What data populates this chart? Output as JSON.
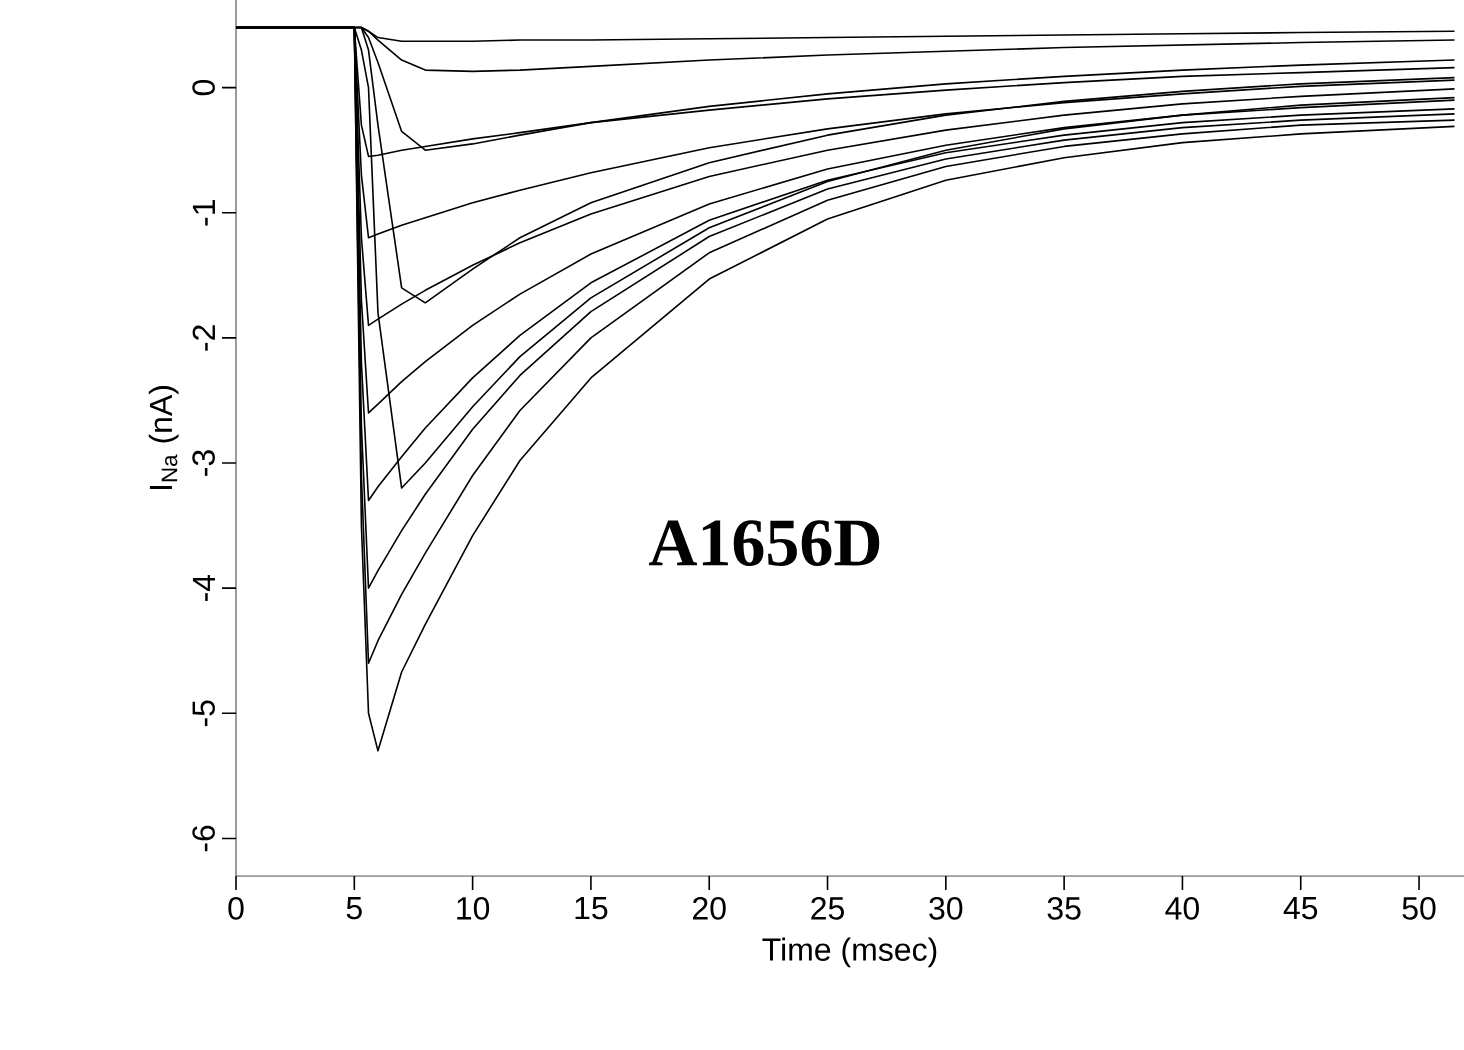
{
  "chart_data": {
    "type": "line",
    "xlabel": "Time (msec)",
    "ylabel": "I$_{Na}$ (nA)",
    "annotations": [
      "A1656D"
    ],
    "xlim": [
      0,
      51.9
    ],
    "ylim": [
      -6.3,
      0.7
    ],
    "xticks": [
      0,
      5,
      10,
      15,
      20,
      25,
      30,
      35,
      40,
      45,
      50
    ],
    "yticks": [
      -6,
      -5,
      -4,
      -3,
      -2,
      -1,
      0
    ],
    "x": [
      0,
      5,
      5.3,
      5.6,
      6,
      7,
      8,
      10,
      12,
      15,
      20,
      25,
      30,
      35,
      40,
      45,
      51.5
    ],
    "series": [
      {
        "color": "#000000",
        "values": [
          0.48,
          0.48,
          0.48,
          0.45,
          0.4,
          0.37,
          0.37,
          0.37,
          0.38,
          0.38,
          0.39,
          0.4,
          0.41,
          0.42,
          0.43,
          0.44,
          0.45
        ]
      },
      {
        "color": "#000000",
        "values": [
          0.48,
          0.48,
          0.48,
          0.45,
          0.38,
          0.22,
          0.14,
          0.13,
          0.14,
          0.17,
          0.22,
          0.26,
          0.29,
          0.32,
          0.34,
          0.36,
          0.38
        ]
      },
      {
        "color": "#000000",
        "values": [
          0.48,
          0.48,
          0.48,
          0.4,
          0.2,
          -0.35,
          -0.5,
          -0.45,
          -0.38,
          -0.28,
          -0.15,
          -0.05,
          0.03,
          0.09,
          0.14,
          0.18,
          0.22
        ]
      },
      {
        "color": "#000000",
        "values": [
          0.48,
          0.48,
          0.48,
          0.3,
          -0.3,
          -1.6,
          -1.72,
          -1.45,
          -1.2,
          -0.92,
          -0.6,
          -0.38,
          -0.22,
          -0.11,
          -0.03,
          0.03,
          0.08
        ]
      },
      {
        "color": "#000000",
        "values": [
          0.48,
          0.48,
          0.3,
          0.0,
          -1.8,
          -3.2,
          -3.0,
          -2.55,
          -2.15,
          -1.68,
          -1.12,
          -0.75,
          -0.5,
          -0.33,
          -0.22,
          -0.14,
          -0.08
        ]
      },
      {
        "color": "#000000",
        "values": [
          0.48,
          0.48,
          -0.3,
          -0.55,
          -0.54,
          -0.5,
          -0.47,
          -0.41,
          -0.36,
          -0.28,
          -0.18,
          -0.09,
          -0.02,
          0.04,
          0.09,
          0.12,
          0.16
        ]
      },
      {
        "color": "#000000",
        "values": [
          0.48,
          0.48,
          -0.7,
          -1.2,
          -1.17,
          -1.1,
          -1.04,
          -0.92,
          -0.82,
          -0.68,
          -0.48,
          -0.33,
          -0.21,
          -0.12,
          -0.05,
          0.01,
          0.06
        ]
      },
      {
        "color": "#000000",
        "values": [
          0.48,
          0.48,
          -1.2,
          -1.9,
          -1.85,
          -1.73,
          -1.62,
          -1.42,
          -1.24,
          -1.01,
          -0.71,
          -0.5,
          -0.34,
          -0.22,
          -0.13,
          -0.07,
          -0.01
        ]
      },
      {
        "color": "#000000",
        "values": [
          0.48,
          0.48,
          -1.7,
          -2.6,
          -2.53,
          -2.35,
          -2.19,
          -1.9,
          -1.65,
          -1.33,
          -0.93,
          -0.65,
          -0.46,
          -0.32,
          -0.22,
          -0.16,
          -0.1
        ]
      },
      {
        "color": "#000000",
        "values": [
          0.48,
          0.48,
          -2.2,
          -3.3,
          -3.19,
          -2.95,
          -2.72,
          -2.32,
          -1.98,
          -1.56,
          -1.06,
          -0.74,
          -0.52,
          -0.38,
          -0.28,
          -0.22,
          -0.17
        ]
      },
      {
        "color": "#000000",
        "values": [
          0.48,
          0.48,
          -2.7,
          -4.0,
          -3.86,
          -3.54,
          -3.25,
          -2.73,
          -2.3,
          -1.79,
          -1.19,
          -0.81,
          -0.57,
          -0.42,
          -0.32,
          -0.26,
          -0.21
        ]
      },
      {
        "color": "#000000",
        "values": [
          0.48,
          0.48,
          -3.1,
          -4.6,
          -4.42,
          -4.05,
          -3.72,
          -3.1,
          -2.58,
          -2.0,
          -1.32,
          -0.9,
          -0.63,
          -0.47,
          -0.37,
          -0.3,
          -0.26
        ]
      },
      {
        "color": "#000000",
        "values": [
          0.48,
          0.48,
          -3.5,
          -5.0,
          -5.3,
          -4.67,
          -4.29,
          -3.58,
          -2.98,
          -2.32,
          -1.53,
          -1.05,
          -0.74,
          -0.56,
          -0.44,
          -0.37,
          -0.31
        ]
      }
    ]
  }
}
